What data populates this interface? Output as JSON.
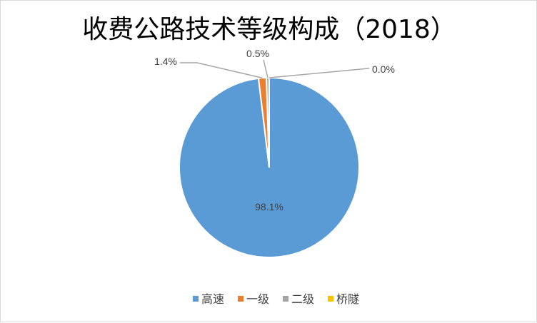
{
  "chart_data": {
    "type": "pie",
    "title": "收费公路技术等级构成（2018）",
    "categories": [
      "高速",
      "一级",
      "二级",
      "桥隧"
    ],
    "values": [
      98.1,
      1.4,
      0.5,
      0.0
    ],
    "data_labels": [
      "98.1%",
      "1.4%",
      "0.5%",
      "0.0%"
    ],
    "colors": [
      "#5B9BD5",
      "#ED7D31",
      "#A5A5A5",
      "#FFC000"
    ],
    "legend": {
      "position": "bottom"
    }
  }
}
